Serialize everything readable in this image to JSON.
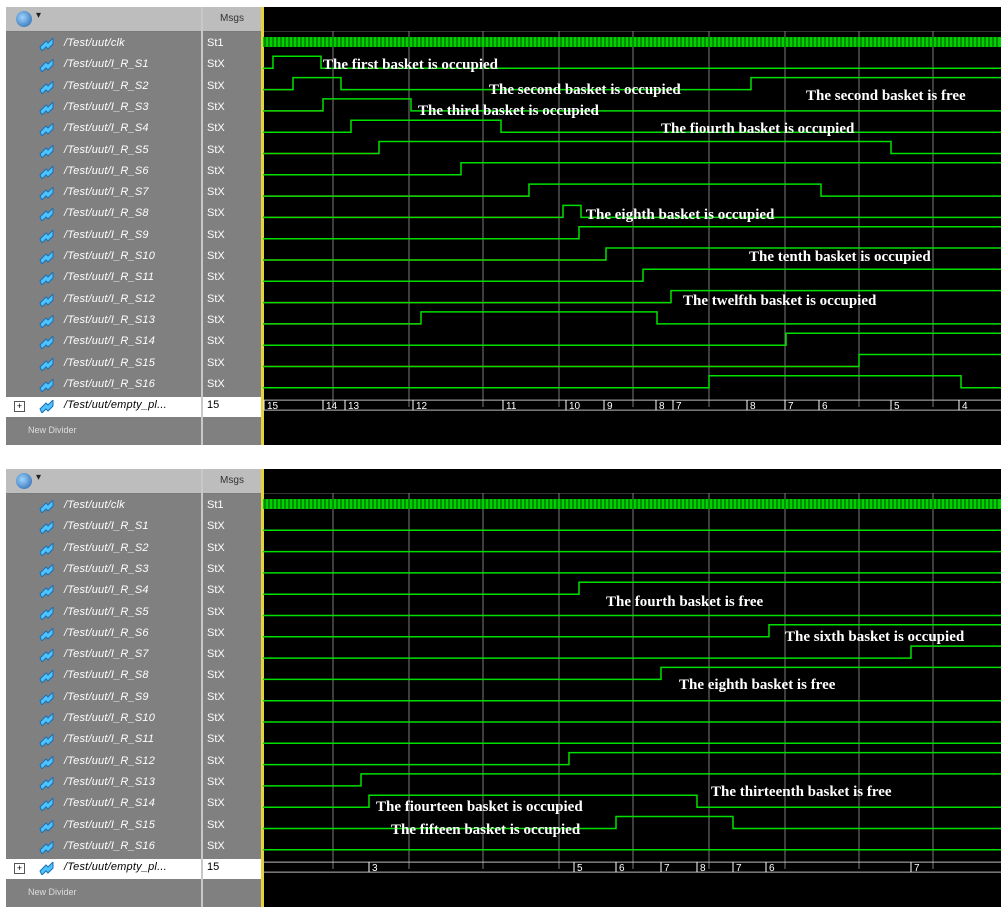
{
  "panels": [
    {
      "msgs_header": "Msgs",
      "clock": {
        "name": "/Test/uut/clk",
        "value": "St1"
      },
      "signals": [
        {
          "name": "/Test/uut/I_R_S1",
          "value": "StX"
        },
        {
          "name": "/Test/uut/I_R_S2",
          "value": "StX"
        },
        {
          "name": "/Test/uut/I_R_S3",
          "value": "StX"
        },
        {
          "name": "/Test/uut/I_R_S4",
          "value": "StX"
        },
        {
          "name": "/Test/uut/I_R_S5",
          "value": "StX"
        },
        {
          "name": "/Test/uut/I_R_S6",
          "value": "StX"
        },
        {
          "name": "/Test/uut/I_R_S7",
          "value": "StX"
        },
        {
          "name": "/Test/uut/I_R_S8",
          "value": "StX"
        },
        {
          "name": "/Test/uut/I_R_S9",
          "value": "StX"
        },
        {
          "name": "/Test/uut/I_R_S10",
          "value": "StX"
        },
        {
          "name": "/Test/uut/I_R_S11",
          "value": "StX"
        },
        {
          "name": "/Test/uut/I_R_S12",
          "value": "StX"
        },
        {
          "name": "/Test/uut/I_R_S13",
          "value": "StX"
        },
        {
          "name": "/Test/uut/I_R_S14",
          "value": "StX"
        },
        {
          "name": "/Test/uut/I_R_S15",
          "value": "StX"
        },
        {
          "name": "/Test/uut/I_R_S16",
          "value": "StX"
        }
      ],
      "bus": {
        "name": "/Test/uut/empty_pl...",
        "value": "15"
      },
      "divider": "New Divider",
      "bus_labels": [
        "15",
        "14",
        "13",
        "12",
        "11",
        "10",
        "9",
        "8",
        "7",
        "8",
        "7",
        "6",
        "5",
        "4"
      ],
      "annotations": [
        "The first basket is occupied",
        "The second basket is occupied",
        "The second basket is free",
        "The third basket is occupied",
        "The fiourth basket is occupied",
        "The eighth basket is occupied",
        "The tenth basket is occupied",
        "The twelfth basket is occupied"
      ]
    },
    {
      "msgs_header": "Msgs",
      "clock": {
        "name": "/Test/uut/clk",
        "value": "St1"
      },
      "signals": [
        {
          "name": "/Test/uut/I_R_S1",
          "value": "StX"
        },
        {
          "name": "/Test/uut/I_R_S2",
          "value": "StX"
        },
        {
          "name": "/Test/uut/I_R_S3",
          "value": "StX"
        },
        {
          "name": "/Test/uut/I_R_S4",
          "value": "StX"
        },
        {
          "name": "/Test/uut/I_R_S5",
          "value": "StX"
        },
        {
          "name": "/Test/uut/I_R_S6",
          "value": "StX"
        },
        {
          "name": "/Test/uut/I_R_S7",
          "value": "StX"
        },
        {
          "name": "/Test/uut/I_R_S8",
          "value": "StX"
        },
        {
          "name": "/Test/uut/I_R_S9",
          "value": "StX"
        },
        {
          "name": "/Test/uut/I_R_S10",
          "value": "StX"
        },
        {
          "name": "/Test/uut/I_R_S11",
          "value": "StX"
        },
        {
          "name": "/Test/uut/I_R_S12",
          "value": "StX"
        },
        {
          "name": "/Test/uut/I_R_S13",
          "value": "StX"
        },
        {
          "name": "/Test/uut/I_R_S14",
          "value": "StX"
        },
        {
          "name": "/Test/uut/I_R_S15",
          "value": "StX"
        },
        {
          "name": "/Test/uut/I_R_S16",
          "value": "StX"
        }
      ],
      "bus": {
        "name": "/Test/uut/empty_pl...",
        "value": "15"
      },
      "divider": "New Divider",
      "bus_labels": [
        "3",
        "5",
        "6",
        "7",
        "8",
        "7",
        "6",
        "7"
      ],
      "annotations": [
        "The fourth basket is free",
        "The sixth basket is occupied",
        "The eighth basket is free",
        "The thirteenth basket is free",
        "The fiourteen basket is occupied",
        "The fifteen basket is occupied"
      ]
    }
  ],
  "colors": {
    "wave_high": "#00e000",
    "wave_x": "#d01010",
    "bus": "#e6e6e6",
    "cursor": "#e6d23c"
  }
}
